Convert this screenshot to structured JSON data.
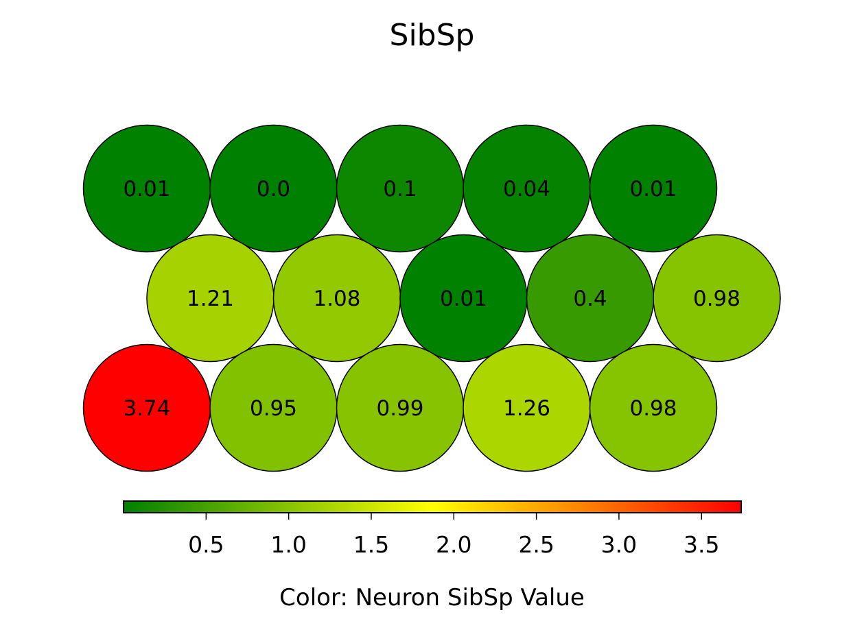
{
  "chart_data": {
    "type": "heatmap",
    "title": "SibSp",
    "colorbar_label": "Color: Neuron SibSp Value",
    "grid": {
      "rows": 3,
      "cols": 5,
      "layout": "hexagonal"
    },
    "rows": [
      {
        "row": 0,
        "values": [
          0.01,
          0.0,
          0.1,
          0.04,
          0.01
        ],
        "labels": [
          "0.01",
          "0.0",
          "0.1",
          "0.04",
          "0.01"
        ]
      },
      {
        "row": 1,
        "values": [
          1.21,
          1.08,
          0.01,
          0.4,
          0.98
        ],
        "labels": [
          "1.21",
          "1.08",
          "0.01",
          "0.4",
          "0.98"
        ]
      },
      {
        "row": 2,
        "values": [
          3.74,
          0.95,
          0.99,
          1.26,
          0.98
        ],
        "labels": [
          "3.74",
          "0.95",
          "0.99",
          "1.26",
          "0.98"
        ]
      }
    ],
    "colorbar": {
      "range": [
        0.0,
        3.74
      ],
      "ticks": [
        0.5,
        1.0,
        1.5,
        2.0,
        2.5,
        3.0,
        3.5
      ],
      "tick_labels": [
        "0.5",
        "1.0",
        "1.5",
        "2.0",
        "2.5",
        "3.0",
        "3.5"
      ],
      "colormap": [
        "#008000",
        "#ffff00",
        "#ff0000"
      ],
      "orientation": "horizontal",
      "placement": "bottom"
    },
    "grid_lines": false
  }
}
